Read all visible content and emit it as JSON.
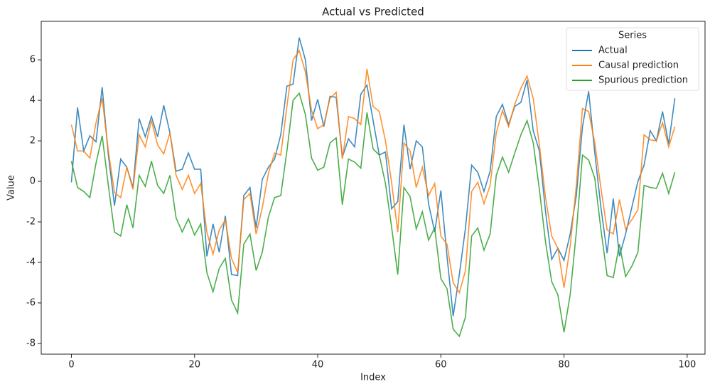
{
  "chart_data": {
    "type": "line",
    "title": "Actual vs Predicted",
    "xlabel": "Index",
    "ylabel": "Value",
    "x": [
      0,
      1,
      2,
      3,
      4,
      5,
      6,
      7,
      8,
      9,
      10,
      11,
      12,
      13,
      14,
      15,
      16,
      17,
      18,
      19,
      20,
      21,
      22,
      23,
      24,
      25,
      26,
      27,
      28,
      29,
      30,
      31,
      32,
      33,
      34,
      35,
      36,
      37,
      38,
      39,
      40,
      41,
      42,
      43,
      44,
      45,
      46,
      47,
      48,
      49,
      50,
      51,
      52,
      53,
      54,
      55,
      56,
      57,
      58,
      59,
      60,
      61,
      62,
      63,
      64,
      65,
      66,
      67,
      68,
      69,
      70,
      71,
      72,
      73,
      74,
      75,
      76,
      77,
      78,
      79,
      80,
      81,
      82,
      83,
      84,
      85,
      86,
      87,
      88,
      89,
      90,
      91,
      92,
      93,
      94,
      95,
      96,
      97,
      98
    ],
    "series": [
      {
        "name": "Actual",
        "color": "#1f77b4",
        "values": [
          -0.05,
          3.65,
          1.5,
          2.25,
          1.95,
          4.65,
          1.3,
          -1.2,
          1.1,
          0.7,
          -0.3,
          3.1,
          2.2,
          3.2,
          2.2,
          3.75,
          2.4,
          0.5,
          0.6,
          1.4,
          0.6,
          0.6,
          -3.7,
          -2.1,
          -3.5,
          -1.7,
          -4.6,
          -4.65,
          -0.7,
          -0.3,
          -2.3,
          0.1,
          0.7,
          1.1,
          2.3,
          4.7,
          4.8,
          7.1,
          6.0,
          3.0,
          4.05,
          2.7,
          4.2,
          4.15,
          1.2,
          2.1,
          1.7,
          4.3,
          4.75,
          3.0,
          1.3,
          1.45,
          -1.35,
          -1.0,
          2.8,
          0.6,
          2.0,
          1.7,
          -1.1,
          -2.5,
          -0.45,
          -3.7,
          -6.65,
          -4.6,
          -2.3,
          0.8,
          0.45,
          -0.5,
          0.5,
          3.2,
          3.8,
          2.8,
          3.7,
          3.9,
          5.0,
          2.5,
          1.5,
          -1.5,
          -3.85,
          -3.3,
          -3.9,
          -2.6,
          -0.7,
          2.7,
          4.45,
          1.4,
          -1.3,
          -3.55,
          -0.85,
          -3.7,
          -2.6,
          -1.3,
          0.0,
          0.8,
          2.5,
          2.0,
          3.45,
          1.85,
          4.1
        ]
      },
      {
        "name": "Causal prediction",
        "color": "#ff7f0e",
        "values": [
          2.8,
          1.5,
          1.5,
          1.15,
          2.9,
          4.1,
          1.5,
          -0.55,
          -0.8,
          0.7,
          -0.4,
          2.3,
          1.7,
          3.0,
          1.8,
          1.35,
          2.4,
          0.3,
          -0.4,
          0.3,
          -0.6,
          -0.1,
          -2.5,
          -3.6,
          -2.4,
          -1.9,
          -3.8,
          -4.5,
          -0.9,
          -0.6,
          -2.6,
          -1.3,
          0.4,
          1.4,
          1.3,
          3.7,
          6.0,
          6.45,
          5.4,
          3.5,
          2.6,
          2.8,
          4.1,
          4.4,
          1.1,
          3.2,
          3.1,
          2.8,
          5.55,
          3.7,
          3.45,
          2.0,
          -0.05,
          -2.5,
          1.9,
          1.5,
          -0.3,
          0.7,
          -0.7,
          -0.1,
          -2.7,
          -3.1,
          -5.0,
          -5.5,
          -4.4,
          -0.5,
          -0.05,
          -1.1,
          -0.2,
          2.4,
          3.5,
          2.7,
          3.8,
          4.6,
          5.2,
          4.1,
          1.8,
          -0.8,
          -2.7,
          -3.3,
          -5.25,
          -3.2,
          -0.2,
          3.6,
          3.45,
          1.9,
          -0.35,
          -2.4,
          -2.6,
          -0.9,
          -2.35,
          -1.9,
          -1.4,
          2.3,
          2.05,
          2.0,
          2.9,
          1.7,
          2.7
        ]
      },
      {
        "name": "Spurious prediction",
        "color": "#2ca02c",
        "values": [
          1.0,
          -0.3,
          -0.5,
          -0.8,
          0.9,
          2.25,
          -0.2,
          -2.5,
          -2.7,
          -1.15,
          -2.3,
          0.3,
          -0.25,
          1.0,
          -0.2,
          -0.6,
          0.3,
          -1.8,
          -2.5,
          -1.85,
          -2.65,
          -2.1,
          -4.5,
          -5.45,
          -4.3,
          -3.8,
          -5.85,
          -6.5,
          -3.1,
          -2.6,
          -4.4,
          -3.5,
          -1.75,
          -0.8,
          -0.7,
          1.5,
          4.0,
          4.35,
          3.3,
          1.15,
          0.55,
          0.7,
          1.9,
          2.15,
          -1.15,
          1.1,
          0.95,
          0.65,
          3.4,
          1.6,
          1.3,
          -0.1,
          -2.25,
          -4.6,
          -0.3,
          -0.75,
          -2.35,
          -1.5,
          -2.9,
          -2.3,
          -4.8,
          -5.3,
          -7.3,
          -7.65,
          -6.7,
          -2.7,
          -2.3,
          -3.4,
          -2.6,
          0.3,
          1.2,
          0.45,
          1.4,
          2.3,
          3.0,
          1.9,
          -0.4,
          -3.0,
          -4.95,
          -5.6,
          -7.45,
          -5.6,
          -2.5,
          1.3,
          1.05,
          0.15,
          -2.4,
          -4.65,
          -4.75,
          -3.1,
          -4.7,
          -4.2,
          -3.5,
          -0.2,
          -0.3,
          -0.35,
          0.4,
          -0.6,
          0.45
        ]
      }
    ],
    "legend_title": "Series",
    "legend": "upper right",
    "xlim": [
      -4.9,
      102.9
    ],
    "xticks": [
      0,
      20,
      40,
      60,
      80,
      100
    ],
    "ylim": [
      -8.53,
      7.9
    ],
    "yticks": [
      -8,
      -6,
      -4,
      -2,
      0,
      2,
      4,
      6
    ]
  }
}
